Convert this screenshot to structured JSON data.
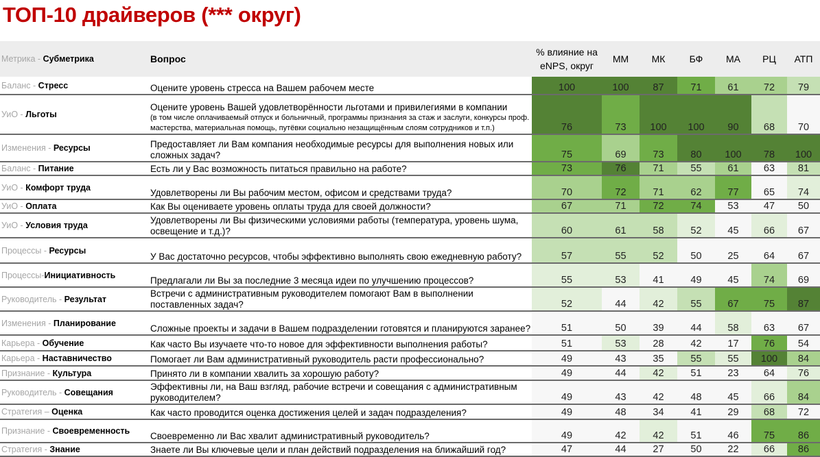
{
  "title": "ТОП-10 драйверов (*** округ)",
  "palette": [
    "#f7f7f7",
    "#e2efda",
    "#c5e0b4",
    "#a9d18e",
    "#70ad47",
    "#548235"
  ],
  "header": {
    "metric_gray": "Метрика - ",
    "metric_bold": "Субметрика",
    "question": "Вопрос",
    "columns": [
      "% влияние на eNPS, округ",
      "ММ",
      "МК",
      "БФ",
      "МА",
      "РЦ",
      "АТП"
    ]
  },
  "rows": [
    {
      "metric": "Баланс - ",
      "sub": "Стресс",
      "question": "Оцените уровень стресса на Вашем рабочем месте",
      "values": [
        100,
        100,
        87,
        71,
        61,
        72,
        79
      ],
      "heat": [
        5,
        5,
        5,
        4,
        3,
        3,
        2
      ]
    },
    {
      "metric": "УиО - ",
      "sub": "Льготы",
      "question": "Оцените уровень Вашей удовлетворённости льготами и привилегиями в компании",
      "note": "(в том числе оплачиваемый отпуск и больничный, программы признания за стаж и заслуги, конкурсы проф. мастерства, материальная помощь, путёвки социально незащищённым слоям сотрудников и т.п.)",
      "values": [
        76,
        73,
        100,
        100,
        90,
        68,
        70
      ],
      "heat": [
        5,
        4,
        5,
        5,
        5,
        2,
        0
      ]
    },
    {
      "metric": "Изменения - ",
      "sub": "Ресурсы",
      "question": "Предоставляет ли Вам компания необходимые ресурсы для выполнения новых или сложных задач?",
      "values": [
        75,
        69,
        73,
        80,
        100,
        78,
        100
      ],
      "heat": [
        4,
        3,
        4,
        5,
        5,
        5,
        5
      ]
    },
    {
      "metric": "Баланс - ",
      "sub": "Питание",
      "question": "Есть ли у Вас возможность питаться правильно на работе?",
      "values": [
        73,
        76,
        71,
        55,
        61,
        63,
        81
      ],
      "heat": [
        4,
        5,
        3,
        2,
        3,
        0,
        2
      ]
    },
    {
      "metric": "УиО - ",
      "sub": "Комфорт труда",
      "question": "Удовлетворены ли Вы рабочим местом, офисом и средствами труда?",
      "values": [
        70,
        72,
        71,
        62,
        77,
        65,
        74
      ],
      "heat": [
        3,
        4,
        3,
        3,
        4,
        0,
        1
      ]
    },
    {
      "metric": "УиО - ",
      "sub": "Оплата",
      "question": "Как Вы оцениваете уровень оплаты труда для своей должности?",
      "values": [
        67,
        71,
        72,
        74,
        53,
        47,
        50
      ],
      "heat": [
        3,
        3,
        4,
        4,
        0,
        0,
        0
      ]
    },
    {
      "metric": "УиО - ",
      "sub": "Условия труда",
      "question": "Удовлетворены ли Вы физическими условиями работы (температура, уровень шума, освещение и т.д.)?",
      "values": [
        60,
        61,
        58,
        52,
        45,
        66,
        67
      ],
      "heat": [
        2,
        2,
        2,
        1,
        0,
        1,
        0
      ]
    },
    {
      "metric": "Процессы - ",
      "sub": "Ресурсы",
      "question": "У Вас достаточно ресурсов, чтобы эффективно выполнять свою ежедневную работу?",
      "values": [
        57,
        55,
        52,
        50,
        25,
        64,
        67
      ],
      "heat": [
        2,
        2,
        2,
        0,
        0,
        0,
        0
      ]
    },
    {
      "metric": "Процессы-",
      "sub": "Инициативность",
      "question": "Предлагали ли Вы за последние 3 месяца идеи по улучшению процессов?",
      "values": [
        55,
        53,
        41,
        49,
        45,
        74,
        69
      ],
      "heat": [
        1,
        1,
        0,
        0,
        0,
        3,
        0
      ]
    },
    {
      "metric": "Руководитель - ",
      "sub": "Результат",
      "question": "Встречи с административным руководителем помогают Вам в выполнении поставленных задач?",
      "values": [
        52,
        44,
        42,
        55,
        67,
        75,
        87
      ],
      "heat": [
        1,
        0,
        1,
        2,
        4,
        4,
        5
      ]
    },
    {
      "metric": "Изменения - ",
      "sub": "Планирование",
      "question": "Сложные проекты и задачи в Вашем подразделении готовятся и планируются заранее?",
      "values": [
        51,
        50,
        39,
        44,
        58,
        63,
        67
      ],
      "heat": [
        0,
        0,
        0,
        0,
        1,
        0,
        0
      ]
    },
    {
      "metric": "Карьера - ",
      "sub": "Обучение",
      "question": "Как часто Вы изучаете что-то новое для эффективности выполнения работы?",
      "values": [
        51,
        53,
        28,
        42,
        17,
        76,
        54
      ],
      "heat": [
        0,
        1,
        0,
        0,
        0,
        4,
        0
      ]
    },
    {
      "metric": "Карьера - ",
      "sub": "Наставничество",
      "question": "Помогает ли Вам административный руководитель расти профессионально?",
      "values": [
        49,
        43,
        35,
        55,
        55,
        100,
        84
      ],
      "heat": [
        0,
        0,
        0,
        2,
        1,
        5,
        3
      ]
    },
    {
      "metric": "Признание - ",
      "sub": "Культура",
      "question": "Принято ли в компании хвалить за хорошую работу?",
      "values": [
        49,
        44,
        42,
        51,
        23,
        64,
        76
      ],
      "heat": [
        0,
        0,
        1,
        0,
        0,
        0,
        1
      ]
    },
    {
      "metric": "Руководитель - ",
      "sub": "Совещания",
      "question": "Эффективны ли, на Ваш взгляд, рабочие встречи и совещания с административным руководителем?",
      "values": [
        49,
        43,
        42,
        48,
        45,
        66,
        84
      ],
      "heat": [
        0,
        0,
        0,
        0,
        0,
        1,
        3
      ]
    },
    {
      "metric": "Стратегия – ",
      "sub": "Оценка",
      "question": "Как часто проводится оценка достижения целей и задач подразделения?",
      "values": [
        49,
        48,
        34,
        41,
        29,
        68,
        72
      ],
      "heat": [
        0,
        0,
        0,
        0,
        0,
        2,
        0
      ]
    },
    {
      "metric": "Признание - ",
      "sub": "Своевременность",
      "question": "Своевременно ли Вас хвалит административный руководитель?",
      "values": [
        49,
        42,
        42,
        51,
        46,
        75,
        86
      ],
      "heat": [
        0,
        0,
        1,
        0,
        0,
        4,
        4
      ]
    },
    {
      "metric": "Стратегия - ",
      "sub": "Знание",
      "question": "Знаете ли Вы ключевые цели и план действий подразделения на ближайший год?",
      "values": [
        47,
        44,
        27,
        50,
        22,
        66,
        86
      ],
      "heat": [
        0,
        0,
        0,
        0,
        0,
        1,
        4
      ]
    }
  ]
}
